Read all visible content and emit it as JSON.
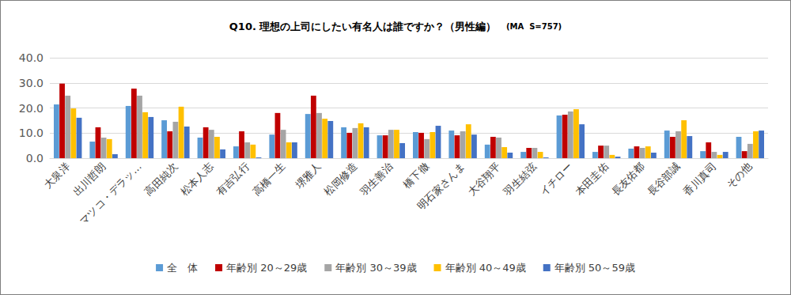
{
  "chart_data": {
    "type": "bar",
    "title": "Q10. 理想の上司にしたい有名人は誰ですか？（男性編）",
    "subtitle": "(MA  S=757)",
    "categories": [
      "大泉洋",
      "出川哲朗",
      "マツコ・デラッ…",
      "高田純次",
      "松本人志",
      "有吉弘行",
      "高橋一生",
      "堺雅人",
      "松岡修造",
      "羽生善治",
      "橋下徹",
      "明石家さんま",
      "大谷翔平",
      "羽生結弦",
      "イチロー",
      "本田圭佑",
      "長友佑都",
      "長谷部誠",
      "香川真司",
      "その他"
    ],
    "series": [
      {
        "name": "全　体",
        "color": "#5b9bd5",
        "values": [
          21.4,
          6.6,
          20.8,
          15.1,
          8.2,
          4.7,
          9.4,
          17.6,
          12.3,
          9.1,
          10.4,
          11.0,
          5.4,
          2.5,
          17.0,
          2.5,
          3.8,
          11.0,
          2.8,
          8.5
        ]
      },
      {
        "name": "年齢別 20～29歳",
        "color": "#c00000",
        "values": [
          29.7,
          12.3,
          27.7,
          10.7,
          12.3,
          10.7,
          18.0,
          24.9,
          10.1,
          9.1,
          10.1,
          9.1,
          8.5,
          4.1,
          17.3,
          5.0,
          4.7,
          8.5,
          6.3,
          2.8
        ]
      },
      {
        "name": "年齢別 30～39歳",
        "color": "#a5a5a5",
        "values": [
          24.9,
          8.2,
          24.9,
          14.5,
          11.3,
          6.3,
          11.3,
          18.0,
          12.0,
          11.3,
          7.6,
          10.7,
          8.2,
          4.1,
          18.6,
          5.0,
          4.1,
          10.7,
          2.5,
          5.7
        ]
      },
      {
        "name": "年齢別 40～49歳",
        "color": "#ffc000",
        "values": [
          19.8,
          7.6,
          18.3,
          20.5,
          8.5,
          5.4,
          6.3,
          15.7,
          13.9,
          11.3,
          10.4,
          13.5,
          4.4,
          2.5,
          19.5,
          1.3,
          4.7,
          15.1,
          1.3,
          10.7
        ]
      },
      {
        "name": "年齢別 50～59歳",
        "color": "#4472c4",
        "values": [
          16.1,
          1.6,
          16.4,
          12.6,
          3.5,
          0.3,
          6.3,
          14.8,
          12.3,
          6.0,
          12.9,
          9.4,
          2.2,
          0.3,
          13.5,
          0.6,
          2.2,
          8.8,
          2.5,
          11.0
        ]
      }
    ],
    "ylim": [
      0,
      40
    ],
    "yticks": [
      {
        "value": 0,
        "label": "0.0"
      },
      {
        "value": 10,
        "label": "10.0"
      },
      {
        "value": 20,
        "label": "20.0"
      },
      {
        "value": 30,
        "label": "30.0"
      },
      {
        "value": 40,
        "label": "40.0"
      }
    ],
    "grid": true,
    "legend": "bottom"
  }
}
